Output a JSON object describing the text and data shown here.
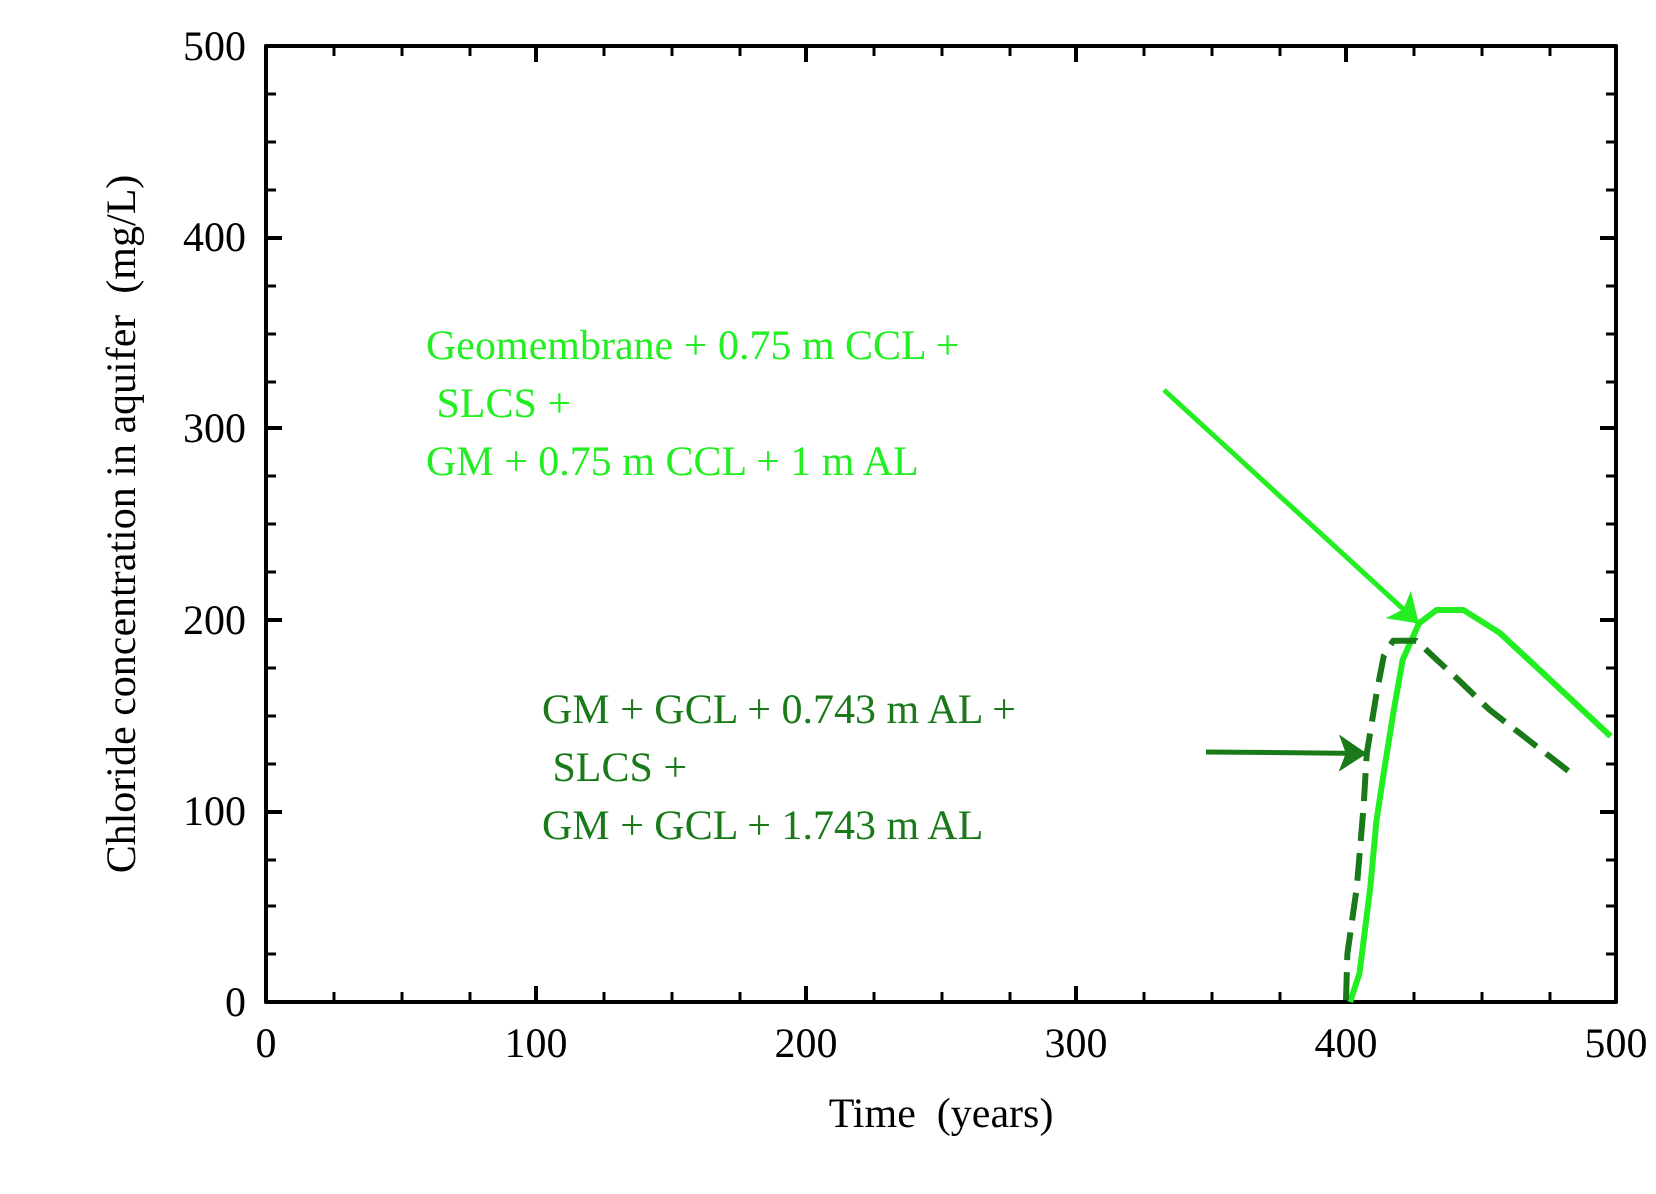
{
  "chart_data": {
    "type": "line",
    "xlabel": "Time  (years)",
    "ylabel": "Chloride concentration in aquifer  (mg/L)",
    "xlim": [
      0,
      500
    ],
    "xticks": [
      0,
      100,
      200,
      300,
      400,
      500
    ],
    "ylim": [
      0,
      500
    ],
    "yticks": [
      0,
      100,
      200,
      300,
      400,
      500
    ],
    "grid": false,
    "marker": "none",
    "annotations": [
      "Geomembrane + 0.75 m CCL +\n SLCS +\nGM + 0.75 m CCL + 1 m AL",
      "GM + GCL + 0.743 m AL +\n SLCS +\nGM + GCL + 1.743 m AL"
    ],
    "series": [
      {
        "color": "#22ee22",
        "line_style": "solid",
        "x": [
          401.5,
          405,
          409,
          411.3,
          414,
          417.5,
          421,
          427,
          433.5,
          443.5,
          457,
          498
        ],
        "values": [
          0,
          15,
          60,
          95,
          120,
          151,
          179,
          198,
          205,
          205,
          193,
          139
        ]
      },
      {
        "color": "#1a7a1a",
        "line_style": "dashed",
        "x": [
          400,
          400.5,
          404,
          406.5,
          407.7,
          411.5,
          414,
          417.5,
          426,
          442,
          453,
          485
        ],
        "values": [
          1,
          25,
          60,
          102,
          130,
          163,
          181,
          189,
          189,
          168,
          153,
          118
        ]
      }
    ]
  }
}
